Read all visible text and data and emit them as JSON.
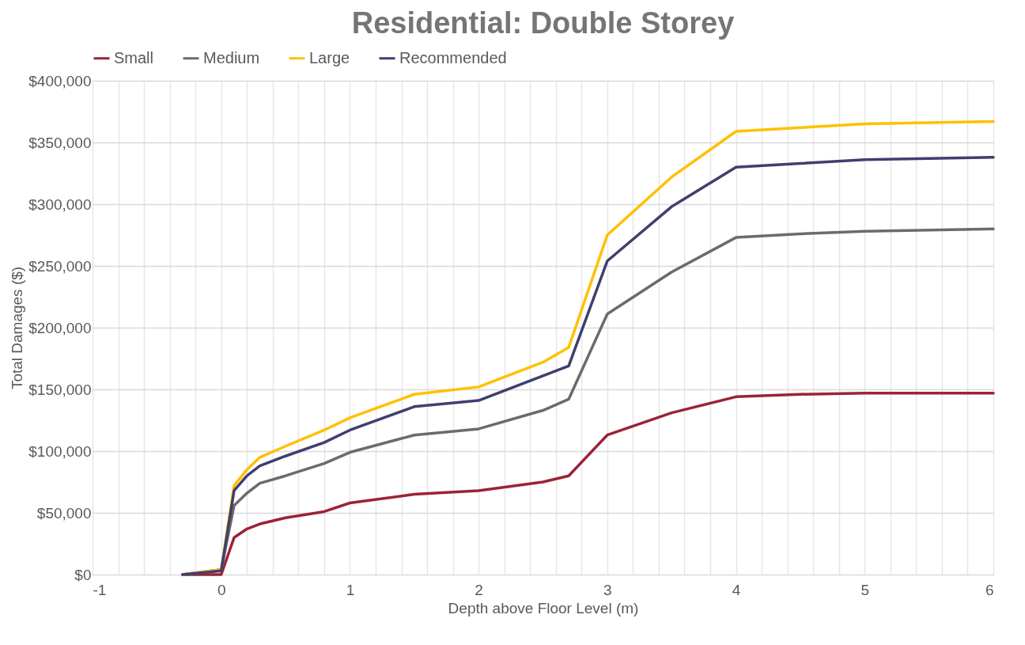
{
  "chart_data": {
    "type": "line",
    "title": "Residential: Double Storey",
    "xlabel": "Depth above Floor Level (m)",
    "ylabel": "Total Damages ($)",
    "x": [
      -0.3,
      0,
      0.1,
      0.2,
      0.3,
      0.5,
      0.8,
      1.0,
      1.5,
      2.0,
      2.5,
      2.7,
      3.0,
      3.5,
      4.0,
      4.5,
      5,
      6
    ],
    "series": [
      {
        "name": "Small",
        "color": "#9b2335",
        "values": [
          0,
          0,
          30000,
          37000,
          41000,
          46000,
          51000,
          58000,
          65000,
          68000,
          75000,
          80000,
          113000,
          131000,
          144000,
          146000,
          147000,
          147000
        ]
      },
      {
        "name": "Medium",
        "color": "#6b6b6b",
        "values": [
          0,
          4000,
          56000,
          66000,
          74000,
          80000,
          90000,
          99000,
          113000,
          118000,
          133000,
          142000,
          211000,
          245000,
          273000,
          276000,
          278000,
          280000
        ]
      },
      {
        "name": "Large",
        "color": "#ffc000",
        "values": [
          0,
          4000,
          72000,
          85000,
          95000,
          104000,
          117000,
          127000,
          146000,
          152000,
          172000,
          184000,
          275000,
          322000,
          359000,
          362000,
          365000,
          367000
        ]
      },
      {
        "name": "Recommended",
        "color": "#3f3f6f",
        "values": [
          0,
          3000,
          68000,
          80000,
          88000,
          96000,
          107000,
          117000,
          136000,
          141000,
          161000,
          169000,
          254000,
          298000,
          330000,
          333000,
          336000,
          338000
        ]
      }
    ],
    "xlim": [
      -1,
      6
    ],
    "xticks": [
      -1,
      {
        "value": -0.8,
        "label": null
      },
      {
        "value": -0.6,
        "label": null
      },
      {
        "value": -0.4,
        "label": null
      },
      {
        "value": -0.2,
        "label": null
      },
      0,
      {
        "value": 0.2,
        "label": null
      },
      {
        "value": 0.4,
        "label": null
      },
      {
        "value": 0.6,
        "label": null
      },
      {
        "value": 0.8,
        "label": null
      },
      1,
      {
        "value": 1.2,
        "label": null
      },
      {
        "value": 1.4,
        "label": null
      },
      {
        "value": 1.6,
        "label": null
      },
      {
        "value": 1.8,
        "label": null
      },
      2,
      {
        "value": 2.2,
        "label": null
      },
      {
        "value": 2.4,
        "label": null
      },
      {
        "value": 2.6,
        "label": null
      },
      {
        "value": 2.8,
        "label": null
      },
      3,
      {
        "value": 3.2,
        "label": null
      },
      {
        "value": 3.4,
        "label": null
      },
      {
        "value": 3.6,
        "label": null
      },
      {
        "value": 3.8,
        "label": null
      },
      4,
      {
        "value": 4.2,
        "label": null
      },
      {
        "value": 4.4,
        "label": null
      },
      {
        "value": 4.6,
        "label": null
      },
      {
        "value": 4.8,
        "label": null
      },
      5,
      {
        "value": 5.2,
        "label": null
      },
      {
        "value": 5.4,
        "label": null
      },
      {
        "value": 5.6,
        "label": null
      },
      {
        "value": 5.8,
        "label": null
      },
      6
    ],
    "ylim": [
      0,
      400000
    ],
    "yticks": [
      {
        "value": 0,
        "label": "$0"
      },
      {
        "value": 50000,
        "label": "$50,000"
      },
      {
        "value": 100000,
        "label": "$100,000"
      },
      {
        "value": 150000,
        "label": "$150,000"
      },
      {
        "value": 200000,
        "label": "$200,000"
      },
      {
        "value": 250000,
        "label": "$250,000"
      },
      {
        "value": 300000,
        "label": "$300,000"
      },
      {
        "value": 350000,
        "label": "$350,000"
      },
      {
        "value": 400000,
        "label": "$400,000"
      }
    ],
    "grid": true,
    "legend": "top"
  }
}
